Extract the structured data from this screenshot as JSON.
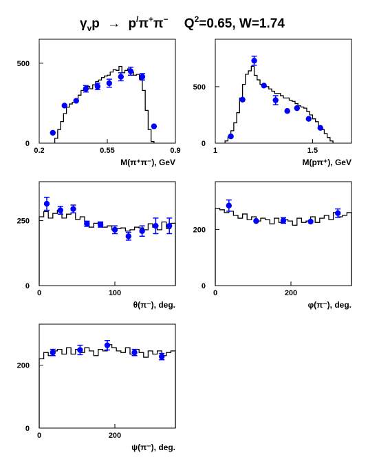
{
  "title": {
    "lhs_main": "γ",
    "lhs_sub": "v",
    "lhs_tail": "p",
    "arrow": "→",
    "rhs": "p",
    "rhs_prime": "/",
    "pi1": "π",
    "pi1_sup": "+",
    "pi2": "π",
    "pi2_sup": "−",
    "q2": "Q",
    "q2_sup": "2",
    "q2_val": "=0.65, W=1.74"
  },
  "colors": {
    "points": "#0000ff",
    "histogram": "#000000"
  },
  "chart_data": [
    {
      "type": "histogram+scatter",
      "xlabel": "M(π⁺π⁻), GeV",
      "xlim": [
        0.2,
        0.9
      ],
      "ylim": [
        0,
        650
      ],
      "xticks": [
        {
          "v": 0.2,
          "label": "0.2"
        },
        {
          "v": 0.55,
          "label": "0.55"
        },
        {
          "v": 0.9,
          "label": "0.9"
        }
      ],
      "yticks": [
        {
          "v": 0,
          "label": "0"
        },
        {
          "v": 500,
          "label": "500"
        }
      ],
      "hist_edges": [
        0.28,
        0.295,
        0.31,
        0.325,
        0.34,
        0.355,
        0.37,
        0.385,
        0.4,
        0.415,
        0.43,
        0.445,
        0.46,
        0.475,
        0.49,
        0.505,
        0.52,
        0.535,
        0.55,
        0.565,
        0.58,
        0.595,
        0.61,
        0.625,
        0.64,
        0.655,
        0.67,
        0.685,
        0.7,
        0.715,
        0.73,
        0.745,
        0.76,
        0.775,
        0.79
      ],
      "hist_values": [
        30,
        85,
        135,
        185,
        225,
        245,
        255,
        275,
        300,
        330,
        345,
        355,
        340,
        365,
        385,
        395,
        410,
        420,
        425,
        445,
        460,
        455,
        480,
        440,
        455,
        465,
        445,
        425,
        430,
        400,
        330,
        205,
        85,
        10
      ],
      "points": [
        {
          "x": 0.27,
          "y": 65,
          "err": 0
        },
        {
          "x": 0.33,
          "y": 235,
          "err": 0
        },
        {
          "x": 0.39,
          "y": 265,
          "err": 0
        },
        {
          "x": 0.44,
          "y": 340,
          "err": 20
        },
        {
          "x": 0.5,
          "y": 355,
          "err": 20
        },
        {
          "x": 0.56,
          "y": 375,
          "err": 25
        },
        {
          "x": 0.62,
          "y": 415,
          "err": 25
        },
        {
          "x": 0.67,
          "y": 450,
          "err": 25
        },
        {
          "x": 0.73,
          "y": 415,
          "err": 20
        },
        {
          "x": 0.79,
          "y": 105,
          "err": 0
        }
      ]
    },
    {
      "type": "histogram+scatter",
      "xlabel": "M(pπ⁺), GeV",
      "xlim": [
        1.0,
        1.7
      ],
      "ylim": [
        0,
        920
      ],
      "xticks": [
        {
          "v": 1.0,
          "label": "1"
        },
        {
          "v": 1.5,
          "label": "1.5"
        }
      ],
      "yticks": [
        {
          "v": 0,
          "label": "0"
        },
        {
          "v": 500,
          "label": "500"
        }
      ],
      "hist_edges": [
        1.05,
        1.065,
        1.08,
        1.095,
        1.11,
        1.125,
        1.14,
        1.155,
        1.17,
        1.185,
        1.2,
        1.215,
        1.23,
        1.245,
        1.26,
        1.275,
        1.29,
        1.305,
        1.32,
        1.335,
        1.35,
        1.365,
        1.38,
        1.395,
        1.41,
        1.425,
        1.44,
        1.455,
        1.47,
        1.485,
        1.5,
        1.515,
        1.53,
        1.545,
        1.56,
        1.575,
        1.59,
        1.605
      ],
      "hist_values": [
        20,
        55,
        110,
        180,
        270,
        400,
        520,
        610,
        640,
        680,
        600,
        560,
        520,
        520,
        500,
        480,
        460,
        440,
        440,
        420,
        400,
        400,
        380,
        370,
        350,
        330,
        320,
        310,
        280,
        250,
        215,
        190,
        150,
        120,
        85,
        50,
        20
      ],
      "points": [
        {
          "x": 1.08,
          "y": 60,
          "err": 0
        },
        {
          "x": 1.14,
          "y": 385,
          "err": 0
        },
        {
          "x": 1.2,
          "y": 730,
          "err": 40
        },
        {
          "x": 1.25,
          "y": 510,
          "err": 0
        },
        {
          "x": 1.31,
          "y": 380,
          "err": 40
        },
        {
          "x": 1.37,
          "y": 285,
          "err": 0
        },
        {
          "x": 1.42,
          "y": 310,
          "err": 0
        },
        {
          "x": 1.48,
          "y": 215,
          "err": 0
        },
        {
          "x": 1.54,
          "y": 135,
          "err": 0
        }
      ]
    },
    {
      "type": "histogram+scatter",
      "xlabel": "θ(π⁻), deg.",
      "xlim": [
        0,
        180
      ],
      "ylim": [
        0,
        400
      ],
      "xticks": [
        {
          "v": 0,
          "label": "0"
        },
        {
          "v": 100,
          "label": "100"
        }
      ],
      "yticks": [
        {
          "v": 0,
          "label": "0"
        },
        {
          "v": 250,
          "label": "250"
        }
      ],
      "hist_edges": [
        0,
        6,
        12,
        18,
        24,
        30,
        36,
        42,
        48,
        54,
        60,
        66,
        72,
        78,
        84,
        90,
        96,
        102,
        108,
        114,
        120,
        126,
        132,
        138,
        144,
        150,
        156,
        162,
        168,
        174,
        180
      ],
      "hist_values": [
        265,
        285,
        260,
        278,
        290,
        260,
        275,
        280,
        255,
        265,
        245,
        225,
        240,
        245,
        225,
        230,
        215,
        220,
        222,
        210,
        215,
        225,
        222,
        215,
        238,
        225,
        215,
        245,
        220,
        240
      ],
      "points": [
        {
          "x": 10,
          "y": 315,
          "err": 25
        },
        {
          "x": 28,
          "y": 290,
          "err": 15
        },
        {
          "x": 45,
          "y": 295,
          "err": 15
        },
        {
          "x": 63,
          "y": 238,
          "err": 10
        },
        {
          "x": 81,
          "y": 235,
          "err": 10
        },
        {
          "x": 100,
          "y": 215,
          "err": 15
        },
        {
          "x": 118,
          "y": 190,
          "err": 15
        },
        {
          "x": 136,
          "y": 210,
          "err": 20
        },
        {
          "x": 154,
          "y": 230,
          "err": 30
        },
        {
          "x": 172,
          "y": 230,
          "err": 30
        }
      ]
    },
    {
      "type": "histogram+scatter",
      "xlabel": "φ(π⁻), deg.",
      "xlim": [
        0,
        360
      ],
      "ylim": [
        0,
        370
      ],
      "xticks": [
        {
          "v": 0,
          "label": "0"
        },
        {
          "v": 200,
          "label": "200"
        }
      ],
      "yticks": [
        {
          "v": 0,
          "label": "0"
        },
        {
          "v": 200,
          "label": "200"
        }
      ],
      "hist_edges": [
        0,
        12,
        24,
        36,
        48,
        60,
        72,
        84,
        96,
        108,
        120,
        132,
        144,
        156,
        168,
        180,
        192,
        204,
        216,
        228,
        240,
        252,
        264,
        276,
        288,
        300,
        312,
        324,
        336,
        348,
        360
      ],
      "hist_values": [
        275,
        270,
        260,
        265,
        250,
        240,
        255,
        235,
        245,
        230,
        240,
        235,
        220,
        240,
        225,
        235,
        230,
        215,
        240,
        225,
        230,
        245,
        225,
        240,
        250,
        235,
        260,
        245,
        250,
        260
      ],
      "points": [
        {
          "x": 36,
          "y": 285,
          "err": 20
        },
        {
          "x": 108,
          "y": 230,
          "err": 0
        },
        {
          "x": 180,
          "y": 232,
          "err": 10
        },
        {
          "x": 252,
          "y": 228,
          "err": 0
        },
        {
          "x": 324,
          "y": 258,
          "err": 15
        }
      ]
    },
    {
      "type": "histogram+scatter",
      "xlabel": "ψ(π⁻), deg.",
      "xlim": [
        0,
        360
      ],
      "ylim": [
        0,
        330
      ],
      "xticks": [
        {
          "v": 0,
          "label": "0"
        },
        {
          "v": 200,
          "label": "200"
        }
      ],
      "yticks": [
        {
          "v": 0,
          "label": "0"
        },
        {
          "v": 200,
          "label": "200"
        }
      ],
      "hist_edges": [
        0,
        12,
        24,
        36,
        48,
        60,
        72,
        84,
        96,
        108,
        120,
        132,
        144,
        156,
        168,
        180,
        192,
        204,
        216,
        228,
        240,
        252,
        264,
        276,
        288,
        300,
        312,
        324,
        336,
        348,
        360
      ],
      "hist_values": [
        220,
        240,
        230,
        245,
        250,
        235,
        255,
        235,
        250,
        240,
        255,
        245,
        230,
        250,
        245,
        265,
        255,
        245,
        240,
        255,
        235,
        250,
        240,
        225,
        245,
        235,
        245,
        230,
        240,
        245
      ],
      "points": [
        {
          "x": 36,
          "y": 240,
          "err": 10
        },
        {
          "x": 108,
          "y": 248,
          "err": 15
        },
        {
          "x": 180,
          "y": 263,
          "err": 15
        },
        {
          "x": 252,
          "y": 240,
          "err": 10
        },
        {
          "x": 324,
          "y": 227,
          "err": 10
        }
      ]
    }
  ]
}
